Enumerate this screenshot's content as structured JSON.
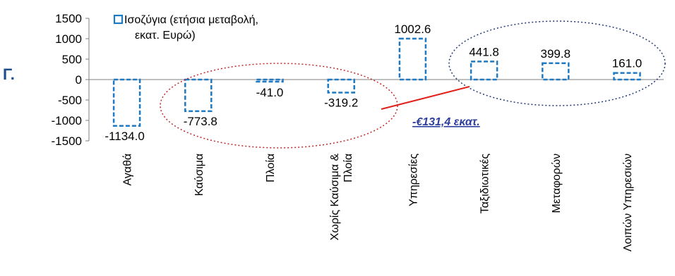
{
  "panel_label": "Γ.",
  "colors": {
    "bar_stroke": "#1f7ac4",
    "highlight_line": "#e0201b",
    "left_ellipse": "#c0282a",
    "right_ellipse": "#243a7a",
    "annotation": "#2e3f9e"
  },
  "annotation": "-€131,4 εκατ.",
  "chart_data": {
    "type": "bar",
    "legend": {
      "line1": "Ισοζύγια (ετήσια μεταβολή,",
      "line2": "εκατ. Ευρώ)",
      "placement": "top-left"
    },
    "categories": [
      [
        "Αγαθά"
      ],
      [
        "Καύσιμα"
      ],
      [
        "Πλοία"
      ],
      [
        "Χωρίς Καύσιμα &",
        "Πλοία"
      ],
      [
        "Υπηρεσίες"
      ],
      [
        "Ταξιδιωτικές"
      ],
      [
        "Μεταφορών"
      ],
      [
        "Λοιπών Υπηρεσιών"
      ]
    ],
    "values": [
      -1134.0,
      -773.8,
      -41.0,
      -319.2,
      1002.6,
      441.8,
      399.8,
      161.0
    ],
    "value_labels": [
      "-1134.0",
      "-773.8",
      "-41.0",
      "-319.2",
      "1002.6",
      "441.8",
      "399.8",
      "161.0"
    ],
    "yticks": [
      1500,
      1000,
      500,
      0,
      -500,
      -1000,
      -1500
    ],
    "ylim": [
      -1500,
      1500
    ],
    "grid": false
  }
}
